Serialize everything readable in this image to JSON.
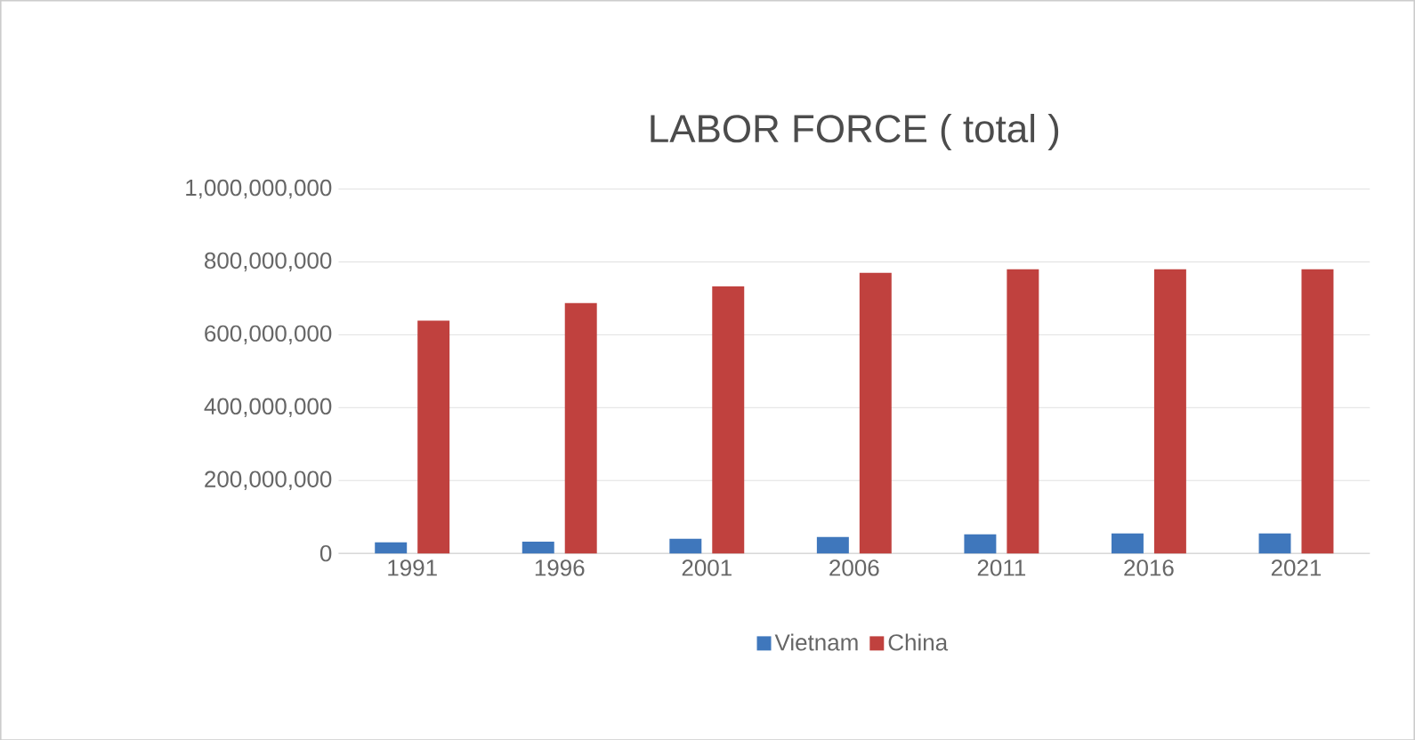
{
  "chart_data": {
    "type": "bar",
    "title": "LABOR FORCE ( total )",
    "categories": [
      "1991",
      "1996",
      "2001",
      "2006",
      "2011",
      "2016",
      "2021"
    ],
    "series": [
      {
        "name": "Vietnam",
        "color": "#3f77bc",
        "values": [
          30000000,
          32000000,
          40000000,
          45000000,
          52000000,
          55000000,
          55000000
        ]
      },
      {
        "name": "China",
        "color": "#c0413e",
        "values": [
          639000000,
          687000000,
          733000000,
          770000000,
          780000000,
          780000000,
          780000000
        ]
      }
    ],
    "ylim": [
      0,
      1000000000
    ],
    "yticks": [
      {
        "value": 0,
        "label": "0"
      },
      {
        "value": 200000000,
        "label": "200,000,000"
      },
      {
        "value": 400000000,
        "label": "400,000,000"
      },
      {
        "value": 600000000,
        "label": "600,000,000"
      },
      {
        "value": 800000000,
        "label": "800,000,000"
      },
      {
        "value": 1000000000,
        "label": "1,000,000,000"
      }
    ],
    "grid": "y",
    "legend": "bottom"
  }
}
